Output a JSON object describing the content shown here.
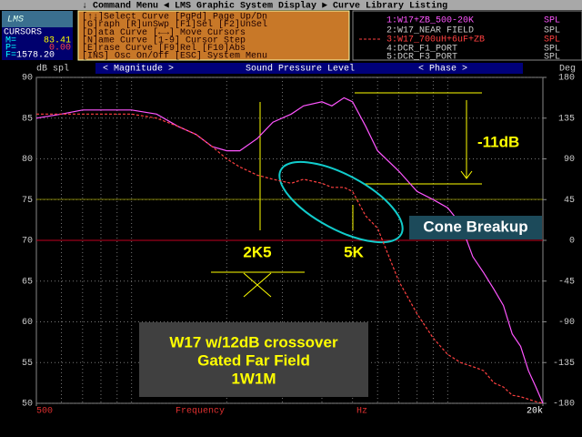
{
  "chart_data": {
    "type": "line",
    "title": "Sound Pressure Level",
    "left_header": "< Magnitude >",
    "right_header": "< Phase >",
    "ylabel": "dB spl",
    "y2label": "Deg",
    "xlabel": "Frequency",
    "xunit": "Hz",
    "log_x": true,
    "grid": true,
    "xlim": [
      500,
      20000
    ],
    "xticks": [
      500,
      {
        "value": 20000,
        "label": "20k"
      }
    ],
    "ylim": [
      50,
      90
    ],
    "yticks": [
      50,
      55,
      60,
      65,
      70,
      75,
      80,
      85,
      90
    ],
    "y2lim": [
      -180,
      180
    ],
    "y2ticks": [
      -180,
      -135,
      -90,
      -45,
      0,
      45,
      90,
      135,
      180
    ],
    "x": [
      500,
      600,
      700,
      1000,
      1200,
      1400,
      1600,
      1800,
      2000,
      2200,
      2500,
      2800,
      3200,
      3500,
      4000,
      4300,
      4700,
      5000,
      5500,
      6000,
      7000,
      8000,
      9000,
      10000,
      11000,
      12000,
      13000,
      14000,
      15000,
      16000,
      17000,
      18000,
      19000,
      20000
    ],
    "series": [
      {
        "name": "W17+ZB_500-20K",
        "color": "#ff55ff",
        "dashed": false,
        "values": [
          85,
          85.5,
          86,
          86,
          85.5,
          84,
          83,
          81.5,
          81,
          81,
          82.5,
          84.5,
          85.5,
          86.5,
          87,
          86.5,
          87.5,
          87,
          84,
          81,
          78.5,
          76,
          75,
          74,
          72,
          68,
          66,
          64,
          62,
          58.5,
          57,
          54,
          52,
          50
        ]
      },
      {
        "name": "W17_700uH+6uF+ZB",
        "color": "#ff4040",
        "dashed": true,
        "values": [
          85.5,
          85.5,
          85.5,
          85.5,
          85,
          84,
          83,
          81.5,
          80,
          79,
          78,
          77.5,
          77,
          77.5,
          77,
          76.5,
          76.5,
          76,
          73,
          71.5,
          65,
          61,
          58,
          56,
          55,
          54.5,
          54,
          52.5,
          52,
          51,
          50.8,
          50.5,
          50.2,
          50
        ]
      }
    ],
    "annotations": {
      "drop": "-11dB",
      "breakup": "Cone Breakup",
      "f1": "2K5",
      "f2": "5K",
      "note": [
        "W17 w/12dB crossover",
        "Gated Far Field",
        "1W1M"
      ]
    }
  },
  "ui": {
    "top_bar": "↓ Command Menu ◄ LMS Graphic System Display ► Curve Library Listing",
    "logo": "LMS",
    "cursors": {
      "title": "CURSORS",
      "m_label": "M=",
      "m_value": "83.41",
      "p_label": "P=",
      "p_value": "0.00",
      "f_label": "F=",
      "f_value": "1578.20"
    },
    "menu": [
      "[↑↓]Select Curve  [PgPd] Page Up/Dn",
      "[G]raph [R]unSwp  [F1]Sel [F2]UnSel",
      "[D]ata  Curve     [←→] Move Cursors",
      "[N]ame  Curve     [1-9] Cursor Step",
      "[E]rase Curve     [F9]Rel [F10]Abs",
      "[INS] Osc On/Off  [ESC] System Menu"
    ],
    "curve_list": [
      {
        "index": "1:",
        "unit": "SPL"
      },
      {
        "index": "2:",
        "name": "W17_NEAR FIELD",
        "unit": "SPL"
      },
      {
        "index": "3:",
        "unit": "SPL"
      },
      {
        "index": "4:",
        "name": "DCR_F1_PORT",
        "unit": "SPL"
      },
      {
        "index": "5:",
        "name": "DCR_F3_PORT",
        "unit": "SPL"
      }
    ]
  }
}
